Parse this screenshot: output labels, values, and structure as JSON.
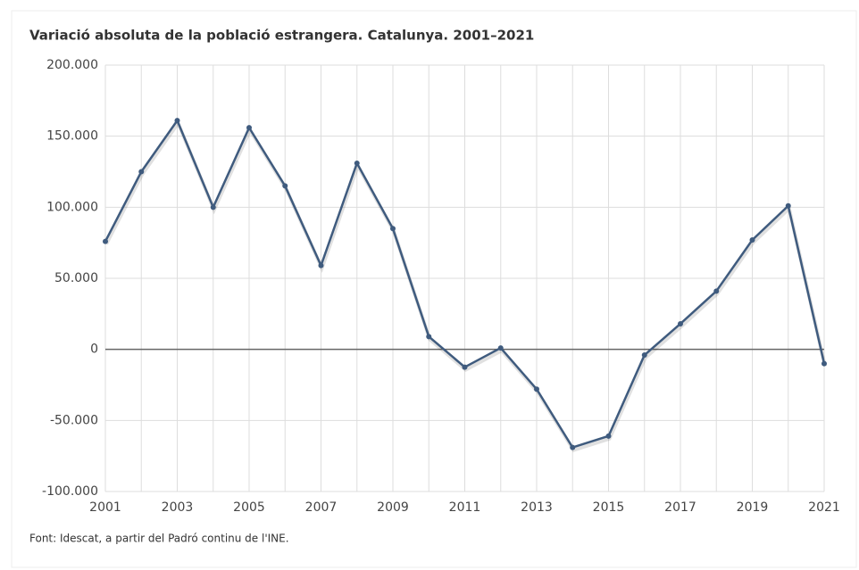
{
  "chart_data": {
    "type": "line",
    "title": "Variació absoluta de la població estrangera. Catalunya. 2001–2021",
    "source": "Font: Idescat, a partir del Padró continu de l'INE.",
    "categories": [
      "2001",
      null,
      "2003",
      null,
      "2005",
      null,
      "2007",
      null,
      "2009",
      null,
      "2011",
      null,
      "2013",
      null,
      "2015",
      null,
      "2017",
      null,
      "2019",
      null,
      "2021"
    ],
    "series": [
      {
        "color": "#3f5b7e",
        "values": [
          76000,
          125000,
          161000,
          100000,
          156000,
          115000,
          59000,
          131000,
          85000,
          9000,
          -12500,
          1000,
          -28000,
          -69000,
          -61000,
          -4000,
          18000,
          41000,
          77000,
          101000,
          -10000
        ]
      }
    ],
    "ylim": [
      -100000,
      200000
    ],
    "yticks": [
      {
        "value": -100000,
        "label": "-100.000"
      },
      {
        "value": -50000,
        "label": "-50.000"
      },
      0,
      {
        "value": 50000,
        "label": "50.000"
      },
      {
        "value": 100000,
        "label": "100.000"
      },
      {
        "value": 150000,
        "label": "150.000"
      },
      {
        "value": 200000,
        "label": "200.000"
      }
    ],
    "grid": true
  }
}
